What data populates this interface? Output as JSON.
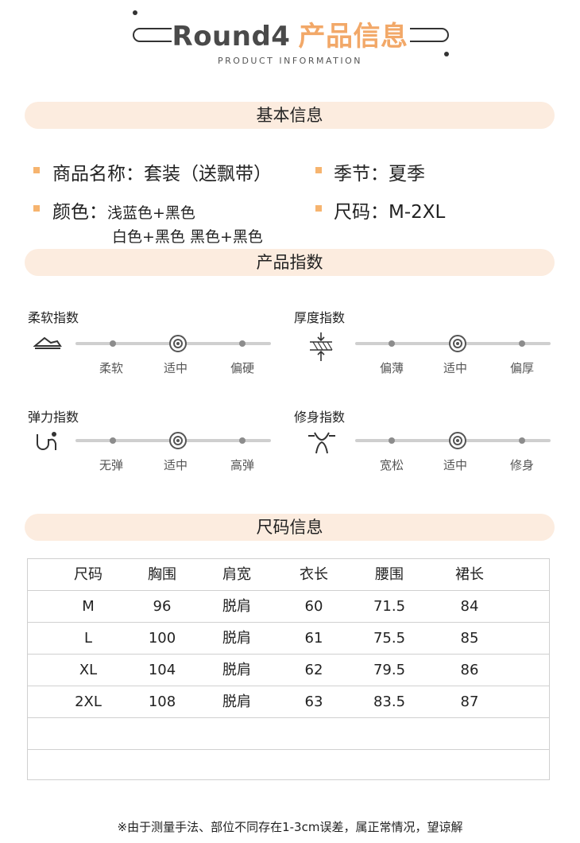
{
  "header": {
    "title_en": "Round4",
    "title_zh": "产品信息",
    "subtitle": "PRODUCT INFORMATION"
  },
  "basic": {
    "section_title": "基本信息",
    "name_label": "商品名称：",
    "name_value": "套装（送飘带）",
    "season_label": "季节：",
    "season_value": "夏季",
    "color_label": "颜色：",
    "color_line1": "浅蓝色+黑色",
    "color_line2": "白色+黑色 黑色+黑色",
    "size_label": "尺码：",
    "size_value": "M-2XL"
  },
  "indices": {
    "section_title": "产品指数",
    "items": [
      {
        "title": "柔软指数",
        "icon": "softness-icon",
        "labels": [
          "柔软",
          "适中",
          "偏硬"
        ],
        "selected": 1
      },
      {
        "title": "厚度指数",
        "icon": "thickness-icon",
        "labels": [
          "偏薄",
          "适中",
          "偏厚"
        ],
        "selected": 1
      },
      {
        "title": "弹力指数",
        "icon": "elasticity-icon",
        "labels": [
          "无弹",
          "适中",
          "高弹"
        ],
        "selected": 1
      },
      {
        "title": "修身指数",
        "icon": "fit-icon",
        "labels": [
          "宽松",
          "适中",
          "修身"
        ],
        "selected": 1
      }
    ]
  },
  "size_table": {
    "section_title": "尺码信息",
    "headers": [
      "尺码",
      "胸围",
      "肩宽",
      "衣长",
      "腰围",
      "裙长"
    ],
    "rows": [
      [
        "M",
        "96",
        "脱肩",
        "60",
        "71.5",
        "84"
      ],
      [
        "L",
        "100",
        "脱肩",
        "61",
        "75.5",
        "85"
      ],
      [
        "XL",
        "104",
        "脱肩",
        "62",
        "79.5",
        "86"
      ],
      [
        "2XL",
        "108",
        "脱肩",
        "63",
        "83.5",
        "87"
      ]
    ]
  },
  "footnote": "※由于测量手法、部位不同存在1-3cm误差，属正常情况，望谅解",
  "colors": {
    "accent": "#f2a868",
    "pill_bg": "#fcecdf",
    "bullet": "#f6b46f"
  }
}
